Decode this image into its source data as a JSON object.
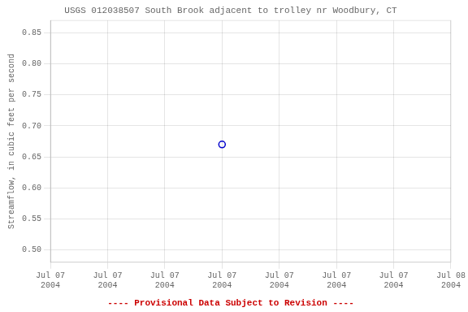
{
  "chart_data": {
    "type": "line",
    "title": "USGS 012038507 South Brook adjacent to trolley nr Woodbury, CT",
    "y_label": "Streamflow, in cubic feet per second",
    "categories": [
      "Jul 07\n2004",
      "Jul 07\n2004",
      "Jul 07\n2004",
      "Jul 07\n2004",
      "Jul 07\n2004",
      "Jul 07\n2004",
      "Jul 07\n2004",
      "Jul 08\n2004"
    ],
    "values": [
      null,
      null,
      null,
      0.67,
      null,
      null,
      null,
      null
    ],
    "color": "#0000cc",
    "marker": "circle",
    "line_style": "none",
    "ylim": [
      0.48,
      0.87
    ],
    "yticks": [
      {
        "value": 0.5,
        "label": "0.50"
      },
      0.55,
      {
        "value": 0.6,
        "label": "0.60"
      },
      0.65,
      {
        "value": 0.7,
        "label": "0.70"
      },
      0.75,
      {
        "value": 0.8,
        "label": "0.80"
      },
      0.85
    ],
    "grid": true,
    "annotations": [
      {
        "text": "---- Provisional Data Subject to Revision ----",
        "color": "#cc0000"
      }
    ]
  }
}
